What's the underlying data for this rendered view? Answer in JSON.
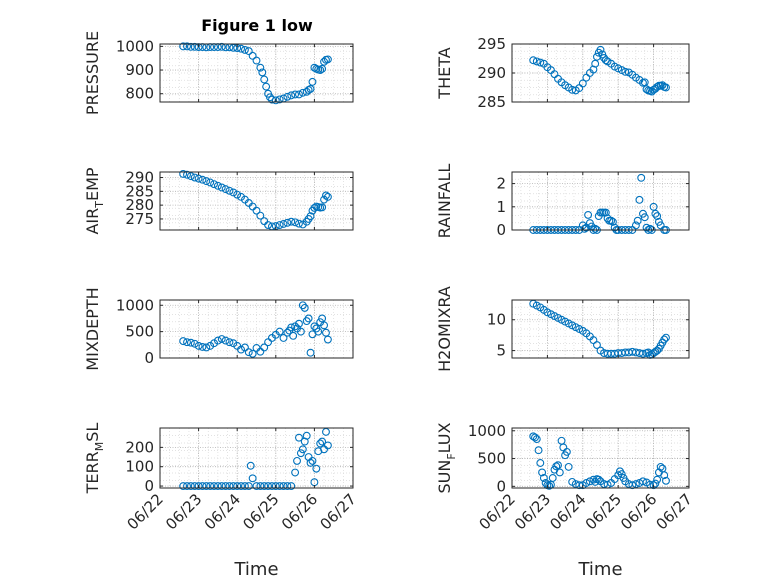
{
  "figure": {
    "title": "Figure 1 low"
  },
  "colors": {
    "marker": "#0072BD",
    "axis": "#262626",
    "grid": "#b0b0b0"
  },
  "chart_data": [
    {
      "id": "pressure",
      "type": "scatter",
      "ylabel": "PRESSURE",
      "ylim": [
        765,
        1010
      ],
      "yticks": [
        800,
        900,
        1000
      ],
      "xlim": [
        "06/22",
        "06/27"
      ],
      "grid": true,
      "marker": "circle-open",
      "x": [
        22.6,
        22.7,
        22.8,
        22.9,
        23.0,
        23.1,
        23.2,
        23.3,
        23.4,
        23.5,
        23.6,
        23.7,
        23.8,
        23.9,
        24.0,
        24.1,
        24.2,
        24.3,
        24.4,
        24.5,
        24.6,
        24.65,
        24.7,
        24.75,
        24.8,
        24.85,
        24.9,
        25.0,
        25.1,
        25.2,
        25.3,
        25.4,
        25.5,
        25.6,
        25.7,
        25.8,
        25.85,
        25.9,
        25.95,
        26.0,
        26.05,
        26.1,
        26.15,
        26.2,
        26.25,
        26.3,
        26.35
      ],
      "y": [
        1000,
        1000,
        998,
        998,
        997,
        997,
        996,
        997,
        997,
        997,
        998,
        996,
        996,
        994,
        993,
        990,
        985,
        980,
        960,
        940,
        910,
        890,
        860,
        830,
        800,
        785,
        775,
        772,
        776,
        780,
        787,
        793,
        797,
        797,
        804,
        808,
        816,
        820,
        850,
        910,
        905,
        902,
        900,
        905,
        935,
        943,
        945
      ]
    },
    {
      "id": "theta",
      "type": "scatter",
      "ylabel": "THETA",
      "ylim": [
        285,
        295
      ],
      "yticks": [
        285,
        290,
        295
      ],
      "xlim": [
        "06/22",
        "06/27"
      ],
      "grid": true,
      "marker": "circle-open",
      "x": [
        22.6,
        22.7,
        22.8,
        22.9,
        23.0,
        23.1,
        23.2,
        23.3,
        23.4,
        23.5,
        23.6,
        23.7,
        23.8,
        23.9,
        24.0,
        24.1,
        24.2,
        24.3,
        24.35,
        24.4,
        24.45,
        24.5,
        24.55,
        24.6,
        24.65,
        24.7,
        24.8,
        24.9,
        25.0,
        25.1,
        25.2,
        25.3,
        25.4,
        25.5,
        25.6,
        25.7,
        25.75,
        25.8,
        25.85,
        25.9,
        25.95,
        26.0,
        26.05,
        26.1,
        26.15,
        26.2,
        26.25,
        26.3,
        26.35
      ],
      "y": [
        292.2,
        292.0,
        291.8,
        291.6,
        291.0,
        290.5,
        289.8,
        289.0,
        288.4,
        287.9,
        287.5,
        287.1,
        287.0,
        287.4,
        288.2,
        289.2,
        290.0,
        290.6,
        291.6,
        292.8,
        293.5,
        294.0,
        293.2,
        292.6,
        292.2,
        292.0,
        291.6,
        291.1,
        290.8,
        290.5,
        290.2,
        290.1,
        289.7,
        289.2,
        288.8,
        288.3,
        288.4,
        287.2,
        287.0,
        286.9,
        286.8,
        287.1,
        287.3,
        287.6,
        287.8,
        287.8,
        287.9,
        287.6,
        287.5
      ]
    },
    {
      "id": "air_temp",
      "type": "scatter",
      "ylabel": "AIR_TEMP",
      "ylim": [
        271,
        292
      ],
      "yticks": [
        275,
        280,
        285,
        290
      ],
      "xlim": [
        "06/22",
        "06/27"
      ],
      "grid": true,
      "marker": "circle-open",
      "x": [
        22.6,
        22.7,
        22.8,
        22.9,
        23.0,
        23.1,
        23.2,
        23.3,
        23.4,
        23.5,
        23.6,
        23.7,
        23.8,
        23.9,
        24.0,
        24.1,
        24.2,
        24.3,
        24.4,
        24.5,
        24.6,
        24.7,
        24.8,
        24.9,
        25.0,
        25.1,
        25.2,
        25.3,
        25.4,
        25.5,
        25.6,
        25.7,
        25.8,
        25.85,
        25.9,
        25.95,
        26.0,
        26.05,
        26.1,
        26.15,
        26.2,
        26.25,
        26.3,
        26.35
      ],
      "y": [
        291.3,
        291.0,
        290.5,
        290.0,
        289.6,
        289.2,
        288.7,
        288.2,
        287.6,
        287.0,
        286.4,
        285.8,
        285.2,
        284.6,
        283.8,
        283.0,
        282.0,
        280.8,
        279.5,
        278.0,
        276.2,
        274.2,
        272.8,
        272.3,
        272.4,
        272.8,
        273.2,
        273.6,
        274.0,
        273.8,
        273.3,
        273.0,
        274.0,
        275.0,
        276.0,
        278.0,
        279.0,
        279.5,
        279.3,
        279.1,
        279.2,
        282.0,
        283.5,
        283.0
      ]
    },
    {
      "id": "rainfall",
      "type": "scatter",
      "ylabel": "RAINFALL",
      "ylim": [
        0,
        2.5
      ],
      "yticks": [
        0,
        1,
        2
      ],
      "xlim": [
        "06/22",
        "06/27"
      ],
      "grid": true,
      "marker": "circle-open",
      "x": [
        22.6,
        22.7,
        22.8,
        22.9,
        23.0,
        23.1,
        23.2,
        23.3,
        23.4,
        23.5,
        23.6,
        23.7,
        23.8,
        23.9,
        24.0,
        24.05,
        24.1,
        24.15,
        24.2,
        24.25,
        24.3,
        24.35,
        24.4,
        24.45,
        24.5,
        24.55,
        24.6,
        24.65,
        24.7,
        24.75,
        24.8,
        24.85,
        24.9,
        24.95,
        25.0,
        25.1,
        25.2,
        25.3,
        25.4,
        25.5,
        25.55,
        25.6,
        25.65,
        25.7,
        25.75,
        25.8,
        25.85,
        25.9,
        25.95,
        26.0,
        26.05,
        26.1,
        26.15,
        26.2,
        26.3,
        26.35
      ],
      "y": [
        0,
        0,
        0,
        0,
        0,
        0,
        0,
        0,
        0,
        0,
        0,
        0,
        0,
        0,
        0.2,
        0.05,
        0.1,
        0.65,
        0.3,
        0.15,
        0,
        0.05,
        0,
        0.6,
        0.75,
        0.75,
        0.75,
        0.75,
        0.5,
        0.4,
        0.4,
        0.35,
        0.1,
        0,
        0,
        0,
        0,
        0,
        0,
        0.2,
        0.4,
        1.3,
        2.25,
        0.7,
        0.55,
        0.1,
        0,
        0.05,
        0,
        1.0,
        0.7,
        0.6,
        0.35,
        0.2,
        0,
        0
      ]
    },
    {
      "id": "mixdepth",
      "type": "scatter",
      "ylabel": "MIXDEPTH",
      "ylim": [
        0,
        1100
      ],
      "yticks": [
        0,
        500,
        1000
      ],
      "xlim": [
        "06/22",
        "06/27"
      ],
      "grid": true,
      "marker": "circle-open",
      "x": [
        22.6,
        22.7,
        22.8,
        22.9,
        23.0,
        23.1,
        23.2,
        23.3,
        23.4,
        23.5,
        23.6,
        23.7,
        23.8,
        23.9,
        24.0,
        24.1,
        24.2,
        24.3,
        24.4,
        24.5,
        24.6,
        24.7,
        24.8,
        24.9,
        25.0,
        25.1,
        25.2,
        25.3,
        25.35,
        25.4,
        25.45,
        25.5,
        25.55,
        25.6,
        25.65,
        25.7,
        25.75,
        25.8,
        25.85,
        25.9,
        25.95,
        26.0,
        26.05,
        26.1,
        26.15,
        26.2,
        26.25,
        26.3,
        26.35
      ],
      "y": [
        320,
        300,
        290,
        270,
        230,
        210,
        200,
        230,
        280,
        330,
        360,
        330,
        300,
        280,
        230,
        160,
        200,
        110,
        80,
        190,
        120,
        200,
        300,
        380,
        440,
        500,
        380,
        480,
        520,
        580,
        420,
        600,
        560,
        650,
        500,
        1000,
        950,
        700,
        750,
        100,
        450,
        600,
        560,
        500,
        680,
        750,
        620,
        480,
        350
      ]
    },
    {
      "id": "h2omixra",
      "type": "scatter",
      "ylabel": "H2OMIXRA",
      "ylim": [
        3.8,
        13.2
      ],
      "yticks": [
        5,
        10
      ],
      "xlim": [
        "06/22",
        "06/27"
      ],
      "grid": true,
      "marker": "circle-open",
      "x": [
        22.6,
        22.7,
        22.8,
        22.9,
        23.0,
        23.1,
        23.2,
        23.3,
        23.4,
        23.5,
        23.6,
        23.7,
        23.8,
        23.9,
        24.0,
        24.1,
        24.2,
        24.3,
        24.4,
        24.5,
        24.6,
        24.7,
        24.8,
        24.9,
        25.0,
        25.1,
        25.2,
        25.3,
        25.4,
        25.5,
        25.6,
        25.7,
        25.8,
        25.85,
        25.9,
        25.95,
        26.0,
        26.05,
        26.1,
        26.15,
        26.2,
        26.25,
        26.3,
        26.35
      ],
      "y": [
        12.6,
        12.3,
        12.0,
        11.6,
        11.2,
        10.9,
        10.6,
        10.3,
        10.0,
        9.7,
        9.4,
        9.1,
        8.8,
        8.5,
        8.2,
        7.8,
        7.3,
        6.7,
        5.9,
        5.0,
        4.6,
        4.5,
        4.5,
        4.5,
        4.6,
        4.6,
        4.7,
        4.7,
        4.8,
        4.7,
        4.6,
        4.5,
        4.6,
        4.7,
        4.3,
        4.4,
        4.6,
        4.8,
        5.0,
        5.3,
        5.8,
        6.3,
        6.8,
        7.1
      ]
    },
    {
      "id": "terr_msl",
      "type": "scatter",
      "ylabel": "TERR_MSL",
      "ylim": [
        -10,
        300
      ],
      "yticks": [
        0,
        100,
        200
      ],
      "xlim": [
        "06/22",
        "06/27"
      ],
      "grid": true,
      "marker": "circle-open",
      "x": [
        22.6,
        22.7,
        22.8,
        22.9,
        23.0,
        23.1,
        23.2,
        23.3,
        23.4,
        23.5,
        23.6,
        23.7,
        23.8,
        23.9,
        24.0,
        24.1,
        24.2,
        24.3,
        24.35,
        24.4,
        24.5,
        24.6,
        24.7,
        24.8,
        24.9,
        25.0,
        25.1,
        25.2,
        25.3,
        25.4,
        25.5,
        25.55,
        25.6,
        25.65,
        25.7,
        25.75,
        25.8,
        25.85,
        25.9,
        25.95,
        26.0,
        26.05,
        26.1,
        26.15,
        26.2,
        26.25,
        26.3,
        26.35
      ],
      "y": [
        0,
        0,
        0,
        0,
        0,
        0,
        0,
        0,
        0,
        0,
        0,
        0,
        0,
        0,
        0,
        0,
        0,
        0,
        105,
        40,
        0,
        0,
        0,
        0,
        0,
        0,
        0,
        0,
        0,
        0,
        70,
        130,
        250,
        170,
        190,
        230,
        260,
        150,
        120,
        130,
        20,
        90,
        180,
        220,
        230,
        190,
        280,
        210
      ]
    },
    {
      "id": "sun_flux",
      "type": "scatter",
      "ylabel": "SUN_FLUX",
      "ylim": [
        -30,
        1050
      ],
      "yticks": [
        0,
        500,
        1000
      ],
      "xlim": [
        "06/22",
        "06/27"
      ],
      "grid": true,
      "marker": "circle-open",
      "x": [
        22.6,
        22.65,
        22.7,
        22.75,
        22.8,
        22.85,
        22.9,
        22.95,
        23.0,
        23.05,
        23.1,
        23.15,
        23.2,
        23.25,
        23.3,
        23.35,
        23.4,
        23.45,
        23.5,
        23.55,
        23.6,
        23.7,
        23.8,
        23.9,
        24.0,
        24.1,
        24.2,
        24.3,
        24.35,
        24.4,
        24.45,
        24.5,
        24.6,
        24.7,
        24.8,
        24.9,
        25.0,
        25.05,
        25.1,
        25.15,
        25.2,
        25.3,
        25.4,
        25.5,
        25.6,
        25.7,
        25.8,
        25.9,
        26.0,
        26.05,
        26.1,
        26.15,
        26.2,
        26.25,
        26.3,
        26.35
      ],
      "y": [
        900,
        880,
        850,
        650,
        420,
        250,
        150,
        60,
        20,
        10,
        30,
        150,
        300,
        360,
        380,
        250,
        820,
        700,
        560,
        620,
        350,
        80,
        40,
        20,
        20,
        60,
        90,
        120,
        80,
        130,
        120,
        90,
        40,
        30,
        60,
        130,
        200,
        270,
        220,
        150,
        90,
        40,
        20,
        40,
        60,
        90,
        70,
        30,
        20,
        50,
        120,
        250,
        350,
        320,
        200,
        100
      ]
    }
  ],
  "xaxis": {
    "tick_labels": [
      "06/22",
      "06/23",
      "06/24",
      "06/25",
      "06/26",
      "06/27"
    ],
    "label": "Time"
  }
}
